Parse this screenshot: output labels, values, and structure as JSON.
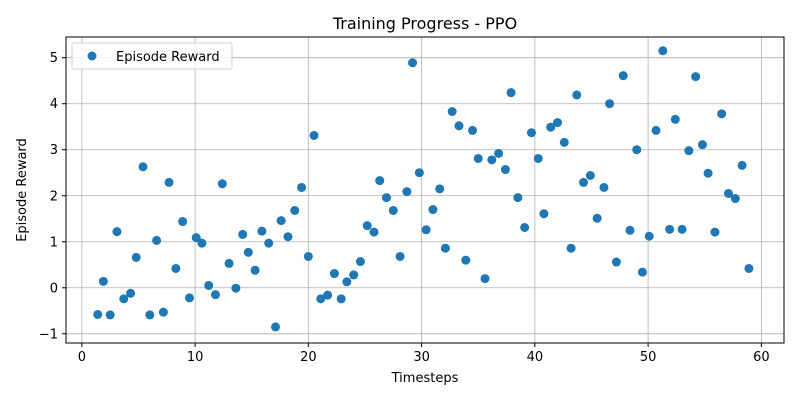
{
  "chart_data": {
    "type": "scatter",
    "title": "Training Progress - PPO",
    "xlabel": "Timesteps",
    "ylabel": "Episode Reward",
    "xlim": [
      -1.4,
      62
    ],
    "ylim": [
      -1.2,
      5.45
    ],
    "xticks": [
      0,
      10,
      20,
      30,
      40,
      50,
      60
    ],
    "yticks": [
      -1,
      0,
      1,
      2,
      3,
      4,
      5
    ],
    "grid": true,
    "legend_position": "top-left",
    "color": "#1f77b4",
    "series": [
      {
        "name": "Episode Reward",
        "points": [
          [
            1.4,
            -0.58
          ],
          [
            1.9,
            0.14
          ],
          [
            2.5,
            -0.59
          ],
          [
            3.1,
            1.22
          ],
          [
            3.7,
            -0.24
          ],
          [
            4.3,
            -0.12
          ],
          [
            4.8,
            0.66
          ],
          [
            5.4,
            2.63
          ],
          [
            6.0,
            -0.59
          ],
          [
            6.6,
            1.03
          ],
          [
            7.2,
            -0.53
          ],
          [
            7.7,
            2.29
          ],
          [
            8.3,
            0.42
          ],
          [
            8.9,
            1.44
          ],
          [
            9.5,
            -0.22
          ],
          [
            10.1,
            1.09
          ],
          [
            10.6,
            0.97
          ],
          [
            11.2,
            0.05
          ],
          [
            11.8,
            -0.15
          ],
          [
            12.4,
            2.26
          ],
          [
            13.0,
            0.53
          ],
          [
            13.6,
            -0.01
          ],
          [
            14.2,
            1.16
          ],
          [
            14.7,
            0.77
          ],
          [
            15.3,
            0.38
          ],
          [
            15.9,
            1.23
          ],
          [
            16.5,
            0.97
          ],
          [
            17.1,
            -0.85
          ],
          [
            17.6,
            1.46
          ],
          [
            18.2,
            1.11
          ],
          [
            18.8,
            1.68
          ],
          [
            19.4,
            2.18
          ],
          [
            20.0,
            0.68
          ],
          [
            20.5,
            3.31
          ],
          [
            21.1,
            -0.24
          ],
          [
            21.7,
            -0.16
          ],
          [
            22.3,
            0.31
          ],
          [
            22.9,
            -0.24
          ],
          [
            23.4,
            0.13
          ],
          [
            24.0,
            0.28
          ],
          [
            24.6,
            0.57
          ],
          [
            25.2,
            1.35
          ],
          [
            25.8,
            1.21
          ],
          [
            26.3,
            2.33
          ],
          [
            26.9,
            1.96
          ],
          [
            27.5,
            1.68
          ],
          [
            28.1,
            0.68
          ],
          [
            28.7,
            2.09
          ],
          [
            29.2,
            4.89
          ],
          [
            29.8,
            2.5
          ],
          [
            30.4,
            1.26
          ],
          [
            31.0,
            1.7
          ],
          [
            31.6,
            2.15
          ],
          [
            32.1,
            0.86
          ],
          [
            32.7,
            3.83
          ],
          [
            33.3,
            3.52
          ],
          [
            33.9,
            0.6
          ],
          [
            34.5,
            3.42
          ],
          [
            35.0,
            2.81
          ],
          [
            35.6,
            0.2
          ],
          [
            36.2,
            2.78
          ],
          [
            36.8,
            2.92
          ],
          [
            37.4,
            2.57
          ],
          [
            37.9,
            4.24
          ],
          [
            38.5,
            1.96
          ],
          [
            39.1,
            1.31
          ],
          [
            39.7,
            3.37
          ],
          [
            40.3,
            2.81
          ],
          [
            40.8,
            1.61
          ],
          [
            41.4,
            3.49
          ],
          [
            42.0,
            3.59
          ],
          [
            42.6,
            3.16
          ],
          [
            43.2,
            0.86
          ],
          [
            43.7,
            4.19
          ],
          [
            44.3,
            2.29
          ],
          [
            44.9,
            2.44
          ],
          [
            45.5,
            1.51
          ],
          [
            46.1,
            2.18
          ],
          [
            46.6,
            4.0
          ],
          [
            47.2,
            0.56
          ],
          [
            47.8,
            4.61
          ],
          [
            48.4,
            1.25
          ],
          [
            49.0,
            3.0
          ],
          [
            49.5,
            0.34
          ],
          [
            50.1,
            1.12
          ],
          [
            50.7,
            3.42
          ],
          [
            51.3,
            5.15
          ],
          [
            51.9,
            1.27
          ],
          [
            52.4,
            3.66
          ],
          [
            53.0,
            1.27
          ],
          [
            53.6,
            2.98
          ],
          [
            54.2,
            4.59
          ],
          [
            54.8,
            3.11
          ],
          [
            55.3,
            2.49
          ],
          [
            55.9,
            1.21
          ],
          [
            56.5,
            3.78
          ],
          [
            57.1,
            2.05
          ],
          [
            57.7,
            1.94
          ],
          [
            58.3,
            2.66
          ],
          [
            58.9,
            0.42
          ]
        ]
      }
    ]
  }
}
